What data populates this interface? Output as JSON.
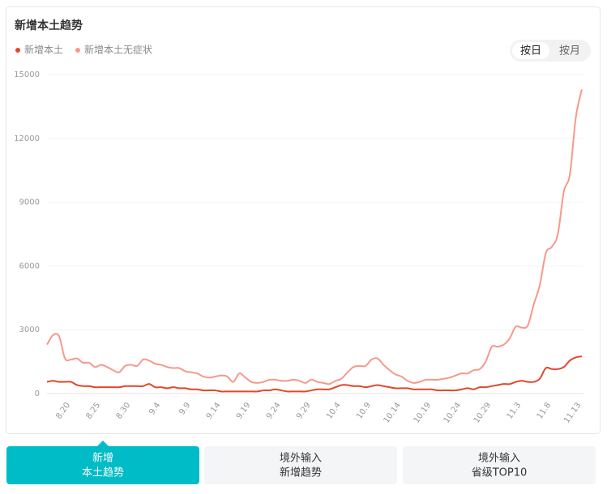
{
  "chart_data": {
    "type": "line",
    "title": "新增本土趋势",
    "categories": [
      null,
      null,
      null,
      "8.20",
      null,
      null,
      null,
      null,
      "8.25",
      null,
      null,
      null,
      null,
      "8.30",
      null,
      null,
      null,
      null,
      "9.4",
      null,
      null,
      null,
      null,
      "9.9",
      null,
      null,
      null,
      null,
      "9.14",
      null,
      null,
      null,
      null,
      "9.19",
      null,
      null,
      null,
      null,
      "9.24",
      null,
      null,
      null,
      null,
      "9.29",
      null,
      null,
      null,
      null,
      "10.4",
      null,
      null,
      null,
      null,
      "10.9",
      null,
      null,
      null,
      null,
      "10.14",
      null,
      null,
      null,
      null,
      "10.19",
      null,
      null,
      null,
      null,
      "10.24",
      null,
      null,
      null,
      null,
      "10.29",
      null,
      null,
      null,
      null,
      "11.3",
      null,
      null,
      null,
      null,
      "11.8",
      null,
      null,
      null,
      null,
      "11.13",
      null
    ],
    "series": [
      {
        "name": "新增本土",
        "color": "#e0472b",
        "values": [
          550,
          600,
          550,
          550,
          550,
          400,
          350,
          350,
          300,
          300,
          300,
          300,
          300,
          350,
          350,
          350,
          350,
          450,
          300,
          300,
          250,
          300,
          250,
          250,
          200,
          200,
          150,
          150,
          150,
          100,
          100,
          100,
          100,
          100,
          100,
          100,
          150,
          150,
          200,
          150,
          100,
          100,
          100,
          100,
          150,
          200,
          200,
          200,
          300,
          400,
          400,
          350,
          350,
          300,
          350,
          400,
          350,
          300,
          250,
          250,
          250,
          200,
          200,
          200,
          200,
          150,
          150,
          150,
          150,
          200,
          250,
          200,
          300,
          300,
          350,
          400,
          450,
          450,
          550,
          600,
          550,
          550,
          700,
          1200,
          1150,
          1150,
          1250,
          1550,
          1700,
          1750
        ]
      },
      {
        "name": "新增本土无症状",
        "color": "#f6998b",
        "values": [
          2300,
          2750,
          2700,
          1650,
          1600,
          1650,
          1450,
          1450,
          1250,
          1350,
          1250,
          1100,
          1000,
          1300,
          1350,
          1300,
          1600,
          1550,
          1400,
          1350,
          1250,
          1200,
          1200,
          1050,
          1000,
          950,
          800,
          750,
          800,
          850,
          800,
          550,
          950,
          750,
          550,
          500,
          550,
          650,
          650,
          600,
          600,
          650,
          600,
          500,
          650,
          550,
          500,
          450,
          600,
          700,
          1000,
          1250,
          1300,
          1300,
          1600,
          1650,
          1350,
          1100,
          900,
          800,
          600,
          500,
          550,
          650,
          650,
          650,
          700,
          750,
          850,
          950,
          950,
          1100,
          1150,
          1500,
          2200,
          2200,
          2300,
          2600,
          3150,
          3100,
          3200,
          4200,
          5100,
          6600,
          6900,
          7500,
          9500,
          10300,
          13000,
          14300
        ]
      }
    ],
    "ylim": [
      0,
      15000
    ],
    "yticks": [
      0,
      3000,
      6000,
      9000,
      12000,
      15000
    ],
    "grid": true,
    "toggle": [
      "按日",
      "按月"
    ]
  },
  "tabs": [
    [
      "新增",
      "本土趋势"
    ],
    [
      "境外输入",
      "新增趋势"
    ],
    [
      "境外输入",
      "省级TOP10"
    ]
  ]
}
